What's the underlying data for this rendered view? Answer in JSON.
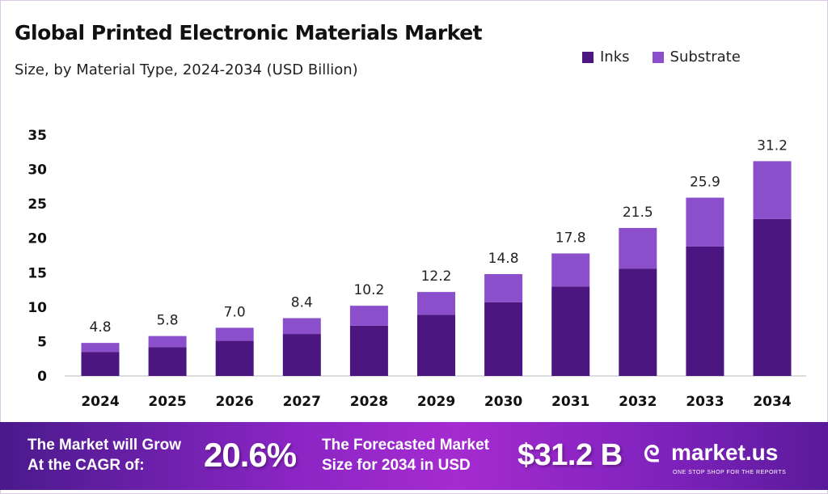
{
  "chart_data": {
    "type": "bar",
    "stacked": true,
    "title": "Global Printed Electronic Materials Market",
    "subtitle": "Size, by Material Type, 2024-2034 (USD Billion)",
    "categories": [
      "2024",
      "2025",
      "2026",
      "2027",
      "2028",
      "2029",
      "2030",
      "2031",
      "2032",
      "2033",
      "2034"
    ],
    "series": [
      {
        "name": "Inks",
        "color": "#4b1680",
        "values": [
          3.5,
          4.2,
          5.1,
          6.1,
          7.3,
          8.9,
          10.7,
          13.0,
          15.6,
          18.8,
          22.8
        ]
      },
      {
        "name": "Substrate",
        "color": "#8b4fcc",
        "values": [
          1.3,
          1.6,
          1.9,
          2.3,
          2.9,
          3.3,
          4.1,
          4.8,
          5.9,
          7.1,
          8.4
        ]
      }
    ],
    "totals": [
      "4.8",
      "5.8",
      "7.0",
      "8.4",
      "10.2",
      "12.2",
      "14.8",
      "17.8",
      "21.5",
      "25.9",
      "31.2"
    ],
    "yticks": [
      "0",
      "5",
      "10",
      "15",
      "20",
      "25",
      "30",
      "35"
    ],
    "ylim": [
      0,
      35
    ],
    "grid": false,
    "legend_position": "top-right"
  },
  "banner": {
    "cagr_text_line1": "The Market will Grow",
    "cagr_text_line2": "At the CAGR of:",
    "cagr_value": "20.6%",
    "forecast_text_line1": "The Forecasted Market",
    "forecast_text_line2": "Size for 2034 in USD",
    "forecast_value": "$31.2 B",
    "logo": "market.us",
    "logo_tagline": "ONE STOP SHOP FOR THE REPORTS"
  }
}
